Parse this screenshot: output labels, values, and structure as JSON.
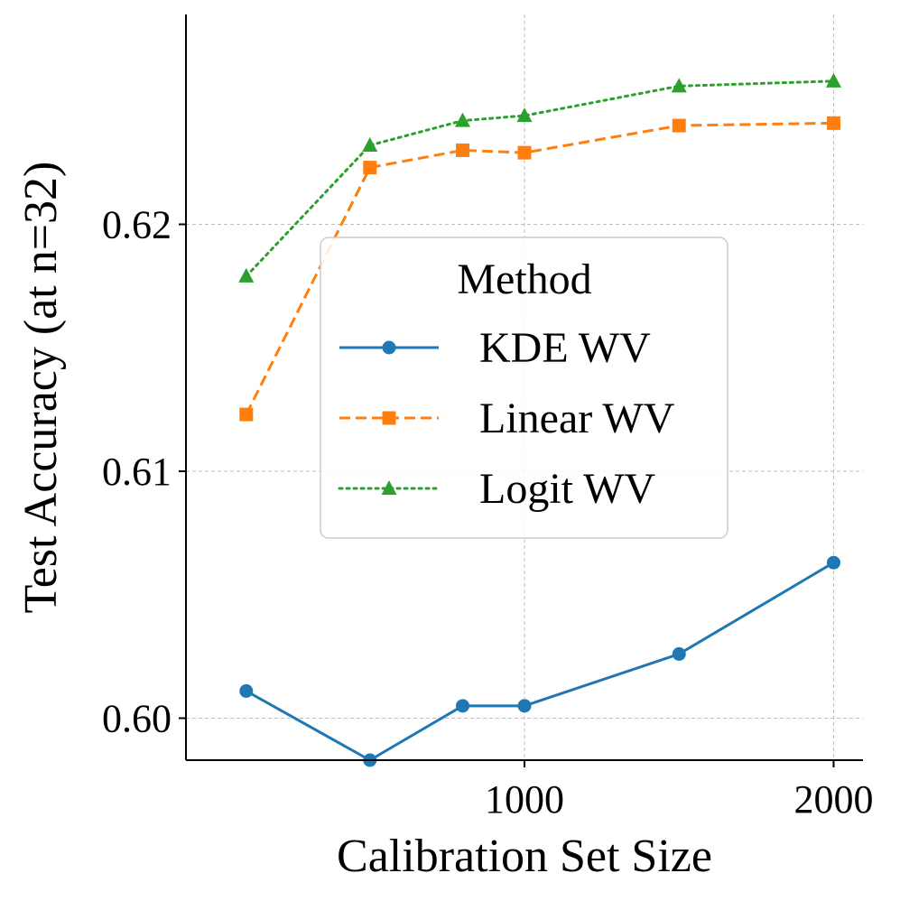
{
  "chart_data": {
    "type": "line",
    "title": "",
    "xlabel": "Calibration Set Size",
    "ylabel": "Test Accuracy (at n=32)",
    "x": [
      100,
      500,
      800,
      1000,
      1500,
      2000
    ],
    "xlim": [
      -95,
      2095
    ],
    "ylim": [
      0.5983,
      0.6285
    ],
    "xticks": [
      1000,
      2000
    ],
    "xtick_labels": [
      "1000",
      "2000"
    ],
    "yticks": [
      0.6,
      0.61,
      0.62
    ],
    "ytick_labels": [
      "0.60",
      "0.61",
      "0.62"
    ],
    "grid": true,
    "legend": {
      "title": "Method",
      "position": "center"
    },
    "series": [
      {
        "name": "KDE WV",
        "color": "#1f77b4",
        "marker": "circle",
        "linestyle": "solid",
        "values": [
          0.6011,
          0.5983,
          0.6005,
          0.6005,
          0.6026,
          0.6063
        ]
      },
      {
        "name": "Linear WV",
        "color": "#ff7f0e",
        "marker": "square",
        "linestyle": "dashed",
        "values": [
          0.6123,
          0.6223,
          0.623,
          0.6229,
          0.624,
          0.6241
        ]
      },
      {
        "name": "Logit WV",
        "color": "#2ca02c",
        "marker": "triangle",
        "linestyle": "dotted",
        "values": [
          0.6179,
          0.6232,
          0.6242,
          0.6244,
          0.6256,
          0.6258
        ]
      }
    ]
  }
}
